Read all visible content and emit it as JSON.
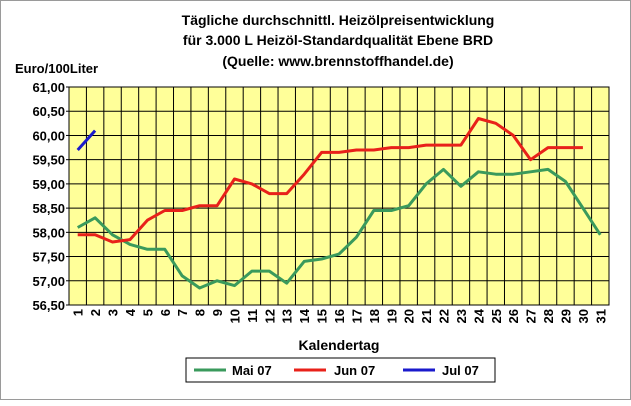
{
  "colors": {
    "plot_bg": "#ffff99",
    "grid": "#000000",
    "mai": "#3a9a5c",
    "jun": "#e8211a",
    "jul": "#1a1acc"
  },
  "chart_data": {
    "type": "line",
    "title_lines": [
      "Tägliche durchschnittl. Heizölpreisentwicklung",
      "für 3.000 L Heizöl-Standardqualität Ebene BRD",
      "(Quelle: www.brennstoffhandel.de)"
    ],
    "ylabel": "Euro/100Liter",
    "xlabel": "Kalendertag",
    "ylim": [
      56.5,
      61.0
    ],
    "ystep": 0.5,
    "yticks": [
      "56,50",
      "57,00",
      "57,50",
      "58,00",
      "58,50",
      "59,00",
      "59,50",
      "60,00",
      "60,50",
      "61,00"
    ],
    "categories": [
      "1",
      "2",
      "3",
      "4",
      "5",
      "6",
      "7",
      "8",
      "9",
      "10",
      "11",
      "12",
      "13",
      "14",
      "15",
      "16",
      "17",
      "18",
      "19",
      "20",
      "21",
      "22",
      "23",
      "24",
      "25",
      "26",
      "27",
      "28",
      "29",
      "30",
      "31"
    ],
    "grid": true,
    "legend_position": "bottom",
    "series": [
      {
        "name": "Mai 07",
        "color_key": "mai",
        "values": [
          58.1,
          58.3,
          57.95,
          57.75,
          57.65,
          57.65,
          57.1,
          56.85,
          57.0,
          56.9,
          57.2,
          57.2,
          56.95,
          57.4,
          57.45,
          57.55,
          57.9,
          58.45,
          58.45,
          58.55,
          59.0,
          59.3,
          58.95,
          59.25,
          59.2,
          59.2,
          59.25,
          59.3,
          59.05,
          58.5,
          57.95
        ]
      },
      {
        "name": "Jun 07",
        "color_key": "jun",
        "values": [
          57.95,
          57.95,
          57.8,
          57.85,
          58.25,
          58.45,
          58.45,
          58.55,
          58.55,
          59.1,
          59.0,
          58.8,
          58.8,
          59.2,
          59.65,
          59.65,
          59.7,
          59.7,
          59.75,
          59.75,
          59.8,
          59.8,
          59.8,
          60.35,
          60.25,
          60.0,
          59.5,
          59.75,
          59.75,
          59.75,
          null
        ]
      },
      {
        "name": "Jul 07",
        "color_key": "jul",
        "values": [
          59.7,
          60.1,
          null,
          null,
          null,
          null,
          null,
          null,
          null,
          null,
          null,
          null,
          null,
          null,
          null,
          null,
          null,
          null,
          null,
          null,
          null,
          null,
          null,
          null,
          null,
          null,
          null,
          null,
          null,
          null,
          null
        ]
      }
    ]
  }
}
